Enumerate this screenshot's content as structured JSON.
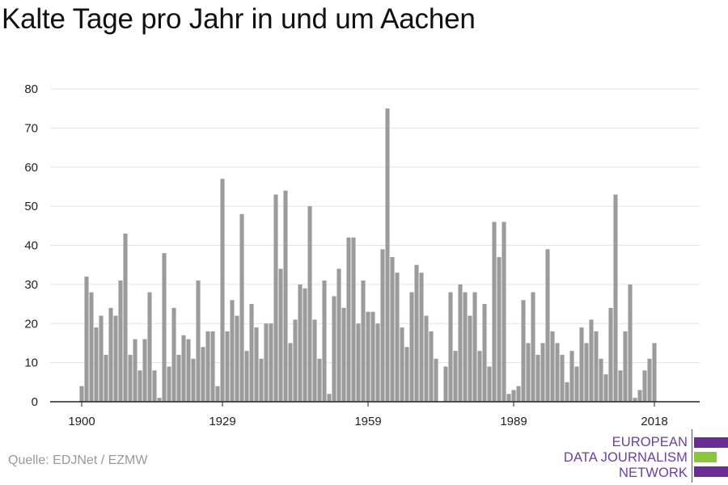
{
  "title": "Kalte Tage pro Jahr in und um Aachen",
  "source": "Quelle: EDJNet / EZMW",
  "logo": {
    "line1": "EUROPEAN",
    "line2": "DATA JOURNALISM",
    "line3": "NETWORK",
    "colors": {
      "purple": "#6b2d91",
      "green": "#8cc63f"
    }
  },
  "colors": {
    "bar": "#9b9b9b",
    "grid": "#e3e3e3",
    "axis": "#222222"
  },
  "chart_data": {
    "type": "bar",
    "title": "Kalte Tage pro Jahr in und um Aachen",
    "xlabel": "",
    "ylabel": "",
    "x_start": 1900,
    "x_end": 2018,
    "xticks": [
      1900,
      1929,
      1959,
      1989,
      2018
    ],
    "yticks": [
      0,
      10,
      20,
      30,
      40,
      50,
      60,
      70,
      80
    ],
    "ylim": [
      0,
      80
    ],
    "grid": true,
    "legend": "none",
    "series": [
      {
        "values": [
          4,
          32,
          28,
          19,
          22,
          12,
          24,
          22,
          31,
          43,
          12,
          16,
          8,
          16,
          28,
          8,
          1,
          38,
          9,
          24,
          12,
          17,
          16,
          11,
          31,
          14,
          18,
          18,
          4,
          57,
          18,
          26,
          22,
          48,
          13,
          25,
          19,
          11,
          20,
          20,
          53,
          34,
          54,
          15,
          21,
          30,
          29,
          50,
          21,
          11,
          31,
          2,
          27,
          34,
          24,
          42,
          42,
          20,
          31,
          23,
          23,
          20,
          39,
          75,
          37,
          33,
          19,
          14,
          28,
          35,
          33,
          22,
          18,
          11,
          0,
          9,
          28,
          13,
          30,
          28,
          22,
          28,
          13,
          25,
          9,
          46,
          37,
          46,
          2,
          3,
          4,
          26,
          15,
          28,
          12,
          15,
          39,
          18,
          15,
          12,
          5,
          13,
          9,
          19,
          15,
          21,
          18,
          11,
          7,
          24,
          53,
          8,
          18,
          30,
          1,
          3,
          8,
          11,
          15
        ]
      }
    ]
  }
}
